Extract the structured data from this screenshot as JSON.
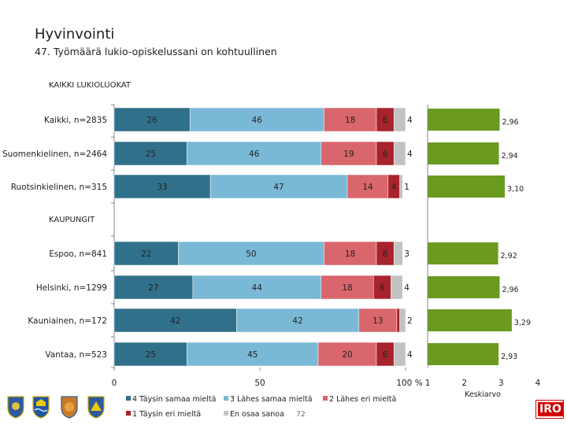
{
  "title": "Hyvinvointi",
  "subtitle": "47. Työmäärä lukio-opiskelussani on kohtuullinen",
  "page_number": "72",
  "logo_text": "IRO",
  "chart_data": {
    "type": "bar",
    "stacked": true,
    "orientation": "horizontal",
    "groups": [
      {
        "label": "KAIKKI LUKIOLUOKAT",
        "row_indices": [
          0,
          1,
          2
        ]
      },
      {
        "label": "KAUPUNGIT",
        "row_indices": [
          3,
          4,
          5,
          6
        ]
      }
    ],
    "categories": [
      "Kaikki, n=2835",
      "Suomenkielinen, n=2464",
      "Ruotsinkielinen, n=315",
      "Espoo, n=841",
      "Helsinki, n=1299",
      "Kauniainen, n=172",
      "Vantaa, n=523"
    ],
    "series": [
      {
        "name": "4 Täysin samaa mieltä",
        "color": "#31708a",
        "values": [
          26,
          25,
          33,
          22,
          27,
          42,
          25
        ],
        "labels": [
          "26",
          "25",
          "33",
          "22",
          "27",
          "42",
          "25"
        ]
      },
      {
        "name": "3 Lähes samaa mieltä",
        "color": "#7ab9d6",
        "values": [
          46,
          46,
          47,
          50,
          44,
          42,
          45
        ],
        "labels": [
          "46",
          "46",
          "47",
          "50",
          "44",
          "42",
          "45"
        ]
      },
      {
        "name": "2 Lähes eri mieltä",
        "color": "#d9666c",
        "values": [
          18,
          19,
          14,
          18,
          18,
          13,
          20
        ],
        "labels": [
          "18",
          "19",
          "14",
          "18",
          "18",
          "13",
          "20"
        ]
      },
      {
        "name": "1 Täysin eri mieltä",
        "color": "#a8232c",
        "values": [
          6,
          6,
          4,
          6,
          6,
          1,
          6
        ],
        "labels": [
          "6",
          "6",
          "4",
          "6",
          "6",
          "",
          "6"
        ]
      },
      {
        "name": "En osaa sanoa",
        "color": "#c2c2c2",
        "values": [
          4,
          4,
          1,
          3,
          4,
          2,
          4
        ],
        "labels": [
          "4",
          "4",
          "1",
          "3",
          "4",
          "2",
          "4"
        ]
      }
    ],
    "xlim": [
      0,
      100
    ],
    "xticks": [
      "0",
      "50",
      "100 %"
    ],
    "mean": {
      "xlabel": "Keskiarvo",
      "xlim": [
        1,
        4
      ],
      "xticks": [
        "1",
        "2",
        "3",
        "4"
      ],
      "color": "#6a9a1f",
      "values": [
        2.96,
        2.94,
        3.1,
        2.92,
        2.96,
        3.29,
        2.93
      ],
      "labels": [
        "2,96",
        "2,94",
        "3,10",
        "2,92",
        "2,96",
        "3,29",
        "2,93"
      ]
    },
    "legend_position": "bottom"
  }
}
